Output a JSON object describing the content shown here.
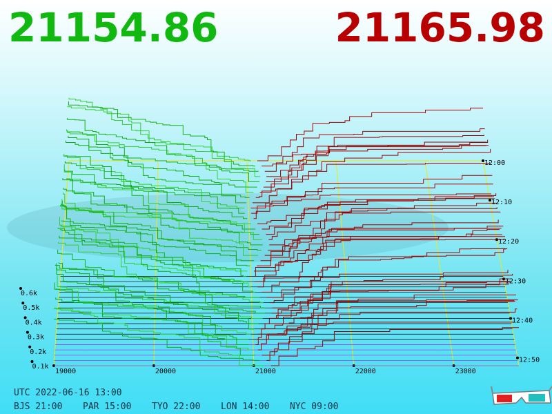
{
  "header": {
    "bid": "21154.86",
    "ask": "21165.98"
  },
  "price_axis": {
    "labels": [
      "19000",
      "20000",
      "21000",
      "22000",
      "23000"
    ]
  },
  "time_axis": {
    "labels": [
      "12:00",
      "12:10",
      "12:20",
      "12:30",
      "12:40",
      "12:50"
    ]
  },
  "depth_axis": {
    "labels": [
      "0.6k",
      "0.5k",
      "0.4k",
      "0.3k",
      "0.2k",
      "0.1k"
    ]
  },
  "footer": {
    "utc": "UTC 2022-06-16 13:00",
    "cities": [
      "BJS 21:00",
      "PAR 15:00",
      "TYO 22:00",
      "LON 14:00",
      "NYC 09:00"
    ]
  }
}
